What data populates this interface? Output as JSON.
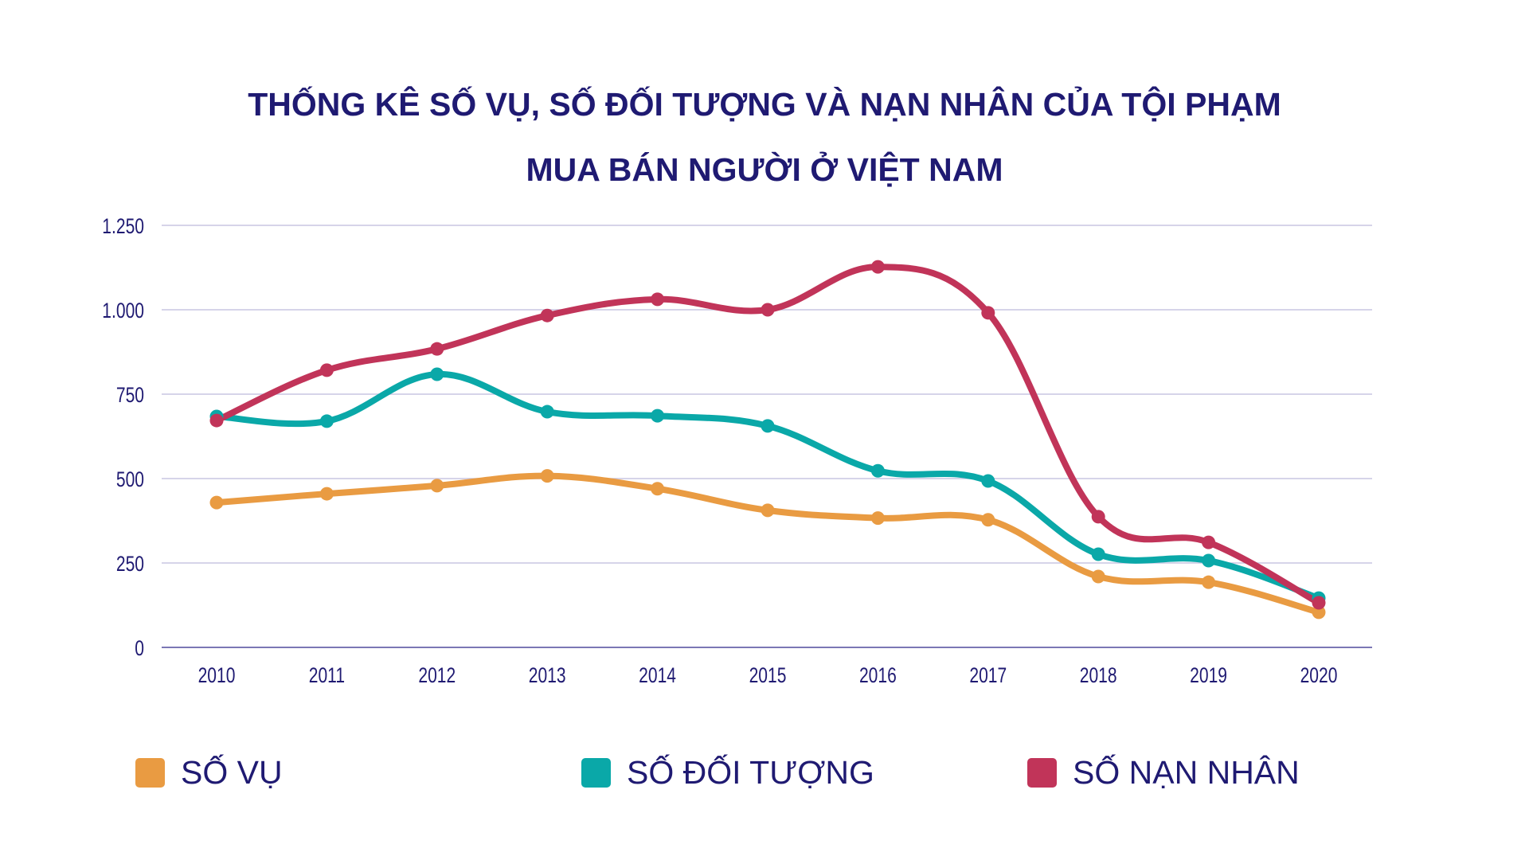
{
  "title": {
    "line1": "THỐNG KÊ SỐ VỤ, SỐ ĐỐI TƯỢNG VÀ NẠN NHÂN CỦA TỘI PHẠM",
    "line2": "MUA BÁN NGƯỜI Ở VIỆT NAM"
  },
  "chart_data": {
    "type": "line",
    "title": "THỐNG KÊ SỐ VỤ, SỐ ĐỐI TƯỢNG VÀ NẠN NHÂN CỦA TỘI PHẠM MUA BÁN NGƯỜI Ở VIỆT NAM",
    "xlabel": "",
    "ylabel": "",
    "categories": [
      "2010",
      "2011",
      "2012",
      "2013",
      "2014",
      "2015",
      "2016",
      "2017",
      "2018",
      "2019",
      "2020"
    ],
    "ylim": [
      0,
      1250
    ],
    "yticks": [
      0,
      250,
      500,
      750,
      1000,
      1250
    ],
    "ytick_labels": [
      "0",
      "250",
      "500",
      "750",
      "1.000",
      "1.250"
    ],
    "grid": true,
    "smooth": true,
    "legend_position": "bottom",
    "series": [
      {
        "name": "SỐ VỤ",
        "color": "#e99b42",
        "values": [
          429,
          455,
          479,
          508,
          470,
          406,
          383,
          378,
          210,
          193,
          104
        ]
      },
      {
        "name": "SỐ ĐỐI TƯỢNG",
        "color": "#0aa8a8",
        "values": [
          684,
          670,
          809,
          698,
          686,
          656,
          523,
          493,
          276,
          257,
          146
        ]
      },
      {
        "name": "SỐ NẠN NHÂN",
        "color": "#c13459",
        "values": [
          672,
          821,
          884,
          983,
          1031,
          1000,
          1127,
          991,
          387,
          311,
          132
        ]
      }
    ]
  },
  "colors": {
    "text": "#1f1a72",
    "grid": "#c9c6e2",
    "axis": "#7b77b5"
  }
}
